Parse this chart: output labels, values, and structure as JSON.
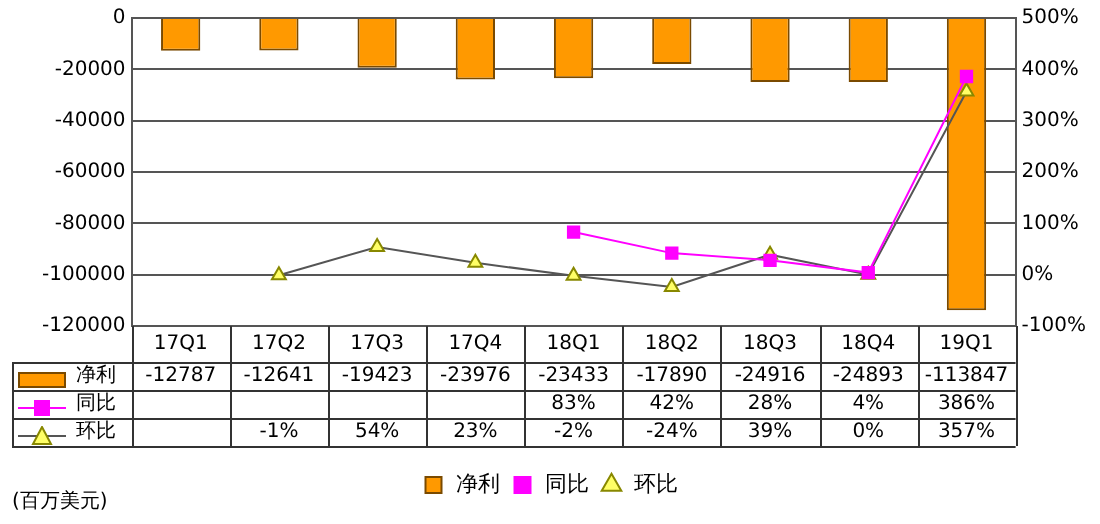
{
  "chart_data": {
    "type": "bar",
    "categories": [
      "17Q1",
      "17Q2",
      "17Q3",
      "17Q4",
      "18Q1",
      "18Q2",
      "18Q3",
      "18Q4",
      "19Q1"
    ],
    "series": [
      {
        "name": "净利",
        "color": "#ff9900",
        "values": [
          -12787,
          -12641,
          -19423,
          -23976,
          -23433,
          -17890,
          -24916,
          -24893,
          -113847
        ],
        "value_labels": [
          "-12787",
          "-12641",
          "-19423",
          "-23976",
          "-23433",
          "-17890",
          "-24916",
          "-24893",
          "-113847"
        ]
      },
      {
        "name": "同比",
        "type": "line",
        "axis": "y2",
        "marker": "square",
        "color": "#ff00ff",
        "values": [
          null,
          null,
          null,
          null,
          83,
          42,
          28,
          4,
          386
        ],
        "value_labels": [
          null,
          null,
          null,
          null,
          "83%",
          "42%",
          "28%",
          "4%",
          "386%"
        ]
      },
      {
        "name": "环比",
        "type": "line",
        "axis": "y2",
        "marker": "triangle",
        "color": "#555555",
        "values": [
          null,
          -1,
          54,
          23,
          -2,
          -24,
          39,
          0,
          357
        ],
        "value_labels": [
          null,
          "-1%",
          "54%",
          "23%",
          "-2%",
          "-24%",
          "39%",
          "0%",
          "357%"
        ]
      }
    ],
    "ylim": [
      -120000,
      0
    ],
    "yticks": [
      0,
      -20000,
      -40000,
      -60000,
      -80000,
      -100000,
      -120000
    ],
    "y2lim": [
      -100,
      500
    ],
    "y2ticks": [
      {
        "value": 500,
        "label": "500%"
      },
      {
        "value": 400,
        "label": "400%"
      },
      {
        "value": 300,
        "label": "300%"
      },
      {
        "value": 200,
        "label": "200%"
      },
      {
        "value": 100,
        "label": "100%"
      },
      {
        "value": 0,
        "label": "0%"
      },
      {
        "value": -100,
        "label": "-100%"
      }
    ],
    "grid": "y",
    "legend": "bottom",
    "annotations": [
      "(百万美元)"
    ]
  }
}
